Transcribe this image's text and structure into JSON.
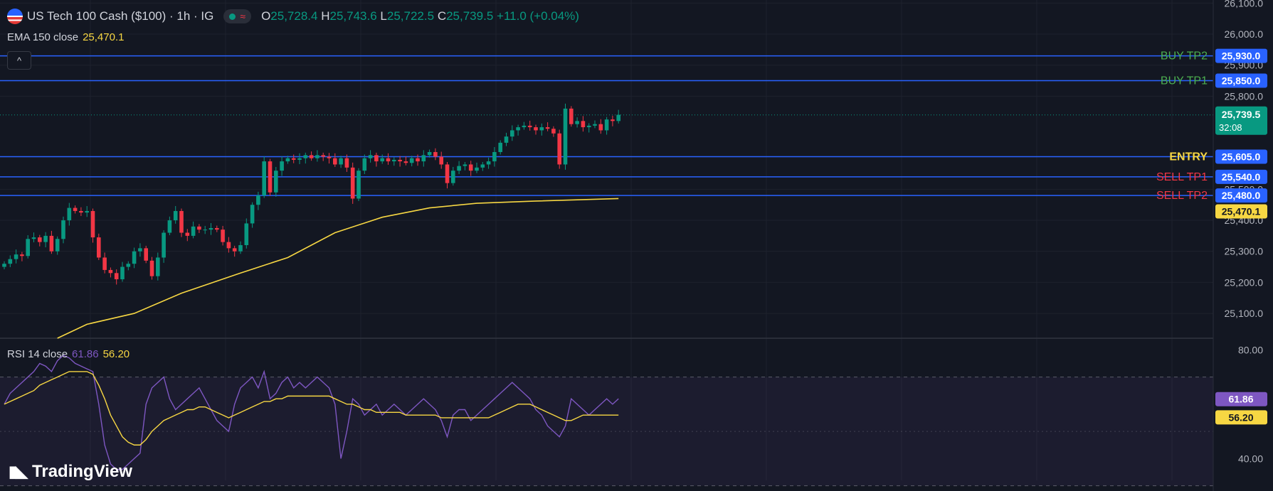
{
  "header": {
    "symbol_title": "US Tech 100 Cash ($100) · 1h · IG",
    "approx_icon": "≈",
    "ohlc": {
      "o_label": "O",
      "o": "25,728.4",
      "h_label": "H",
      "h": "25,743.6",
      "l_label": "L",
      "l": "25,722.5",
      "c_label": "C",
      "c": "25,739.5",
      "change": "+11.0 (+0.04%)"
    },
    "ema_label": "EMA 150 close",
    "ema_value": "25,470.1",
    "collapse_icon": "^"
  },
  "rsi_header": {
    "label": "RSI 14 close",
    "value": "61.86",
    "ma_value": "56.20"
  },
  "branding": {
    "logo_text": "TradingView"
  },
  "colors": {
    "background": "#131722",
    "up": "#089981",
    "down": "#f23645",
    "level_line": "#2962ff",
    "ema": "#f7d743",
    "rsi": "#7e57c2",
    "buy_label": "#4caf50",
    "sell_label": "#f23645",
    "entry_label": "#f7d743"
  },
  "chart_data": [
    {
      "type": "candlestick",
      "title": "US Tech 100 Cash ($100) · 1h · IG",
      "y_axis_ticks": [
        "26,100.0",
        "26,000.0",
        "25,900.0",
        "25,800.0",
        "25,500.0",
        "25,400.0",
        "25,300.0",
        "25,200.0",
        "25,100.0"
      ],
      "ylim": [
        25020,
        26110
      ],
      "current_price": {
        "value": 25739.5,
        "label": "25,739.5",
        "countdown": "32:08"
      },
      "levels": [
        {
          "name": "BUY TP2",
          "value": 25930.0,
          "label": "25,930.0",
          "kind": "buy"
        },
        {
          "name": "BUY TP1",
          "value": 25850.0,
          "label": "25,850.0",
          "kind": "buy"
        },
        {
          "name": "ENTRY",
          "value": 25605.0,
          "label": "25,605.0",
          "kind": "entry"
        },
        {
          "name": "SELL TP1",
          "value": 25540.0,
          "label": "25,540.0",
          "kind": "sell"
        },
        {
          "name": "SELL TP2",
          "value": 25480.0,
          "label": "25,480.0",
          "kind": "sell"
        }
      ],
      "ema_label_value": {
        "value": 25470.1,
        "label": "25,470.1"
      },
      "close": [
        25260,
        25275,
        25290,
        25285,
        25340,
        25345,
        25330,
        25350,
        25300,
        25340,
        25400,
        25440,
        25430,
        25425,
        25430,
        25345,
        25280,
        25240,
        25230,
        25210,
        25250,
        25260,
        25300,
        25310,
        25270,
        25220,
        25280,
        25360,
        25400,
        25430,
        25360,
        25350,
        25380,
        25370,
        25370,
        25375,
        25370,
        25330,
        25310,
        25300,
        25320,
        25390,
        25450,
        25480,
        25590,
        25490,
        25560,
        25590,
        25600,
        25595,
        25600,
        25610,
        25600,
        25610,
        25605,
        25600,
        25580,
        25600,
        25570,
        25470,
        25560,
        25600,
        25610,
        25590,
        25600,
        25590,
        25595,
        25590,
        25585,
        25600,
        25590,
        25610,
        25620,
        25605,
        25580,
        25520,
        25560,
        25575,
        25580,
        25560,
        25570,
        25580,
        25590,
        25620,
        25650,
        25670,
        25690,
        25700,
        25705,
        25700,
        25690,
        25700,
        25695,
        25680,
        25580,
        25760,
        25710,
        25720,
        25700,
        25705,
        25710,
        25690,
        25725,
        25720,
        25740
      ],
      "ema150": [
        {
          "i": 9,
          "v": 25020
        },
        {
          "i": 14,
          "v": 25065
        },
        {
          "i": 22,
          "v": 25100
        },
        {
          "i": 30,
          "v": 25165
        },
        {
          "i": 40,
          "v": 25230
        },
        {
          "i": 48,
          "v": 25280
        },
        {
          "i": 56,
          "v": 25360
        },
        {
          "i": 64,
          "v": 25410
        },
        {
          "i": 72,
          "v": 25440
        },
        {
          "i": 80,
          "v": 25455
        },
        {
          "i": 90,
          "v": 25462
        },
        {
          "i": 104,
          "v": 25470
        }
      ]
    },
    {
      "type": "line",
      "title": "RSI 14 close",
      "y_axis_ticks": [
        "80.00",
        "40.00"
      ],
      "ylim": [
        32,
        84
      ],
      "bands": [
        70,
        30
      ],
      "series": [
        {
          "name": "RSI 14 close",
          "last": 61.86,
          "last_label": "61.86",
          "values": [
            60,
            64,
            66,
            68,
            70,
            72,
            75,
            74,
            72,
            76,
            78,
            77,
            75,
            74,
            73,
            72,
            60,
            45,
            38,
            36,
            36,
            38,
            40,
            42,
            60,
            66,
            68,
            70,
            62,
            58,
            60,
            62,
            64,
            66,
            62,
            58,
            54,
            52,
            50,
            60,
            66,
            68,
            70,
            66,
            72,
            62,
            64,
            68,
            70,
            66,
            68,
            66,
            68,
            70,
            68,
            66,
            60,
            40,
            50,
            62,
            60,
            56,
            58,
            60,
            56,
            58,
            60,
            58,
            56,
            58,
            60,
            62,
            60,
            58,
            54,
            48,
            56,
            58,
            58,
            54,
            56,
            58,
            60,
            62,
            64,
            66,
            68,
            66,
            64,
            62,
            58,
            56,
            52,
            50,
            48,
            52,
            62,
            60,
            58,
            56,
            58,
            60,
            62,
            60,
            62
          ]
        },
        {
          "name": "RSI MA",
          "last": 56.2,
          "last_label": "56.20",
          "values": [
            60,
            61,
            62,
            63,
            64,
            65,
            67,
            68,
            69,
            70,
            71,
            72,
            72,
            72,
            72,
            71,
            67,
            62,
            56,
            52,
            48,
            46,
            45,
            45,
            47,
            50,
            52,
            54,
            55,
            56,
            57,
            58,
            58,
            59,
            59,
            58,
            57,
            56,
            55,
            56,
            57,
            58,
            59,
            60,
            61,
            61,
            62,
            62,
            63,
            63,
            63,
            63,
            63,
            63,
            63,
            63,
            62,
            61,
            60,
            60,
            59,
            58,
            58,
            57,
            57,
            57,
            57,
            57,
            56,
            56,
            56,
            56,
            56,
            56,
            55,
            55,
            55,
            55,
            55,
            55,
            55,
            55,
            55,
            56,
            57,
            58,
            59,
            60,
            60,
            60,
            59,
            58,
            57,
            56,
            55,
            54,
            54,
            55,
            56,
            56,
            56,
            56,
            56,
            56,
            56
          ]
        }
      ]
    }
  ]
}
